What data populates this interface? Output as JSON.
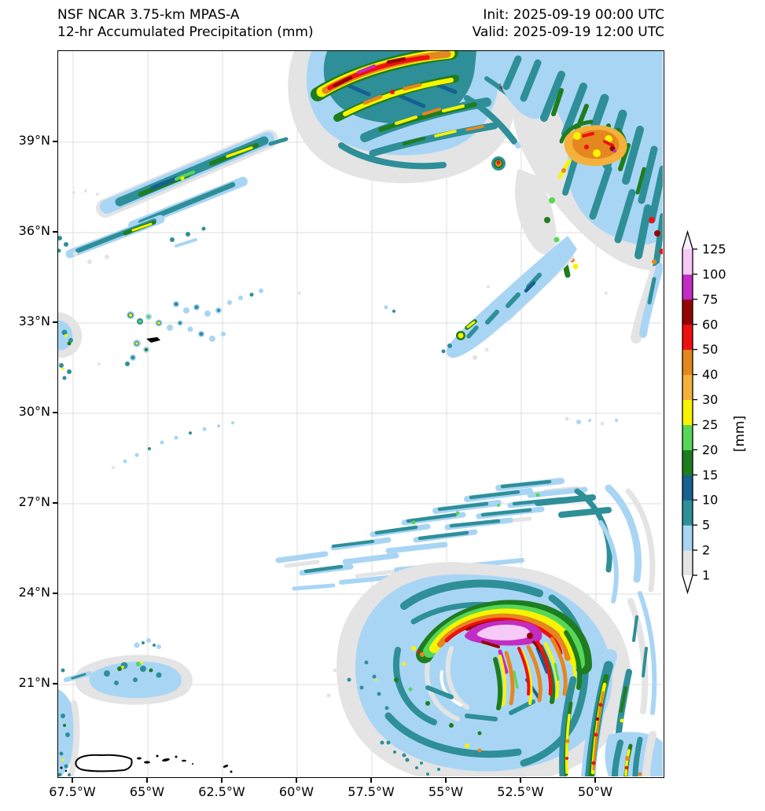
{
  "header": {
    "title_line1": "NSF NCAR 3.75-km MPAS-A",
    "title_line2": "12-hr Accumulated Precipitation (mm)",
    "init_line": "Init: 2025-09-19 00:00 UTC",
    "valid_line": "Valid: 2025-09-19 12:00 UTC"
  },
  "chart_data": {
    "type": "heatmap",
    "subtype": "filled-contour precipitation map over western Atlantic",
    "title": "NSF NCAR 3.75-km MPAS-A 12-hr Accumulated Precipitation (mm)",
    "x_axis": {
      "label": "longitude",
      "ticks": [
        "67.5°W",
        "65°W",
        "62.5°W",
        "60°W",
        "57.5°W",
        "55°W",
        "52.5°W",
        "50°W"
      ]
    },
    "y_axis": {
      "label": "latitude",
      "ticks": [
        "39°N",
        "36°N",
        "33°N",
        "30°N",
        "27°N",
        "24°N",
        "21°N"
      ]
    },
    "grid": "on",
    "colorbar": {
      "label": "[mm]",
      "units": "mm",
      "levels": [
        1,
        2,
        5,
        10,
        15,
        20,
        25,
        30,
        40,
        50,
        60,
        75,
        100,
        125
      ],
      "segments": [
        {
          "level": 1,
          "range": "1-2",
          "color": "#e4e4e4"
        },
        {
          "level": 2,
          "range": "2-5",
          "color": "#a9d5f5"
        },
        {
          "level": 5,
          "range": "5-10",
          "color": "#2e8f98"
        },
        {
          "level": 10,
          "range": "10-15",
          "color": "#16618f"
        },
        {
          "level": 15,
          "range": "15-20",
          "color": "#1e7d1e"
        },
        {
          "level": 20,
          "range": "20-25",
          "color": "#57d657"
        },
        {
          "level": 25,
          "range": "25-30",
          "color": "#f8f400"
        },
        {
          "level": 30,
          "range": "30-40",
          "color": "#f4b13c"
        },
        {
          "level": 40,
          "range": "40-50",
          "color": "#e5871f"
        },
        {
          "level": 50,
          "range": "50-60",
          "color": "#ef1010"
        },
        {
          "level": 60,
          "range": "60-75",
          "color": "#950404"
        },
        {
          "level": 75,
          "range": "75-100",
          "color": "#c22cc2"
        },
        {
          "level": 100,
          "range": "100-125",
          "color": "#f6c9f6"
        },
        {
          "level": 125,
          "range": ">125",
          "color": "#fdeefd"
        }
      ],
      "over_arrow_color": "#fdeefd",
      "under_arrow_color": "#ffffff"
    },
    "features": [
      "Mesoscale convective system at top edge near 57-60W with 60-125 mm cores",
      "Large convective complex 50-53.5W / 36-40N with 30-75 mm cores and SW trailing band",
      "SW-NE oriented rain streaks 62-67.5W / 36.5-39.5N, mostly 5-25 mm",
      "Scattered showers around Bermuda near 33N 64-65W",
      "Tropical cyclone centered near 22N 55W with >100 mm maximum north of center",
      "Outer rainbands converging from WSW between 24-27N",
      "Strong convective band near 51-52W south of 22N",
      "Shower cluster northeast of Puerto Rico near 21.5N 65W",
      "Puerto Rico and Virgin Islands coastlines along bottom edge"
    ]
  }
}
